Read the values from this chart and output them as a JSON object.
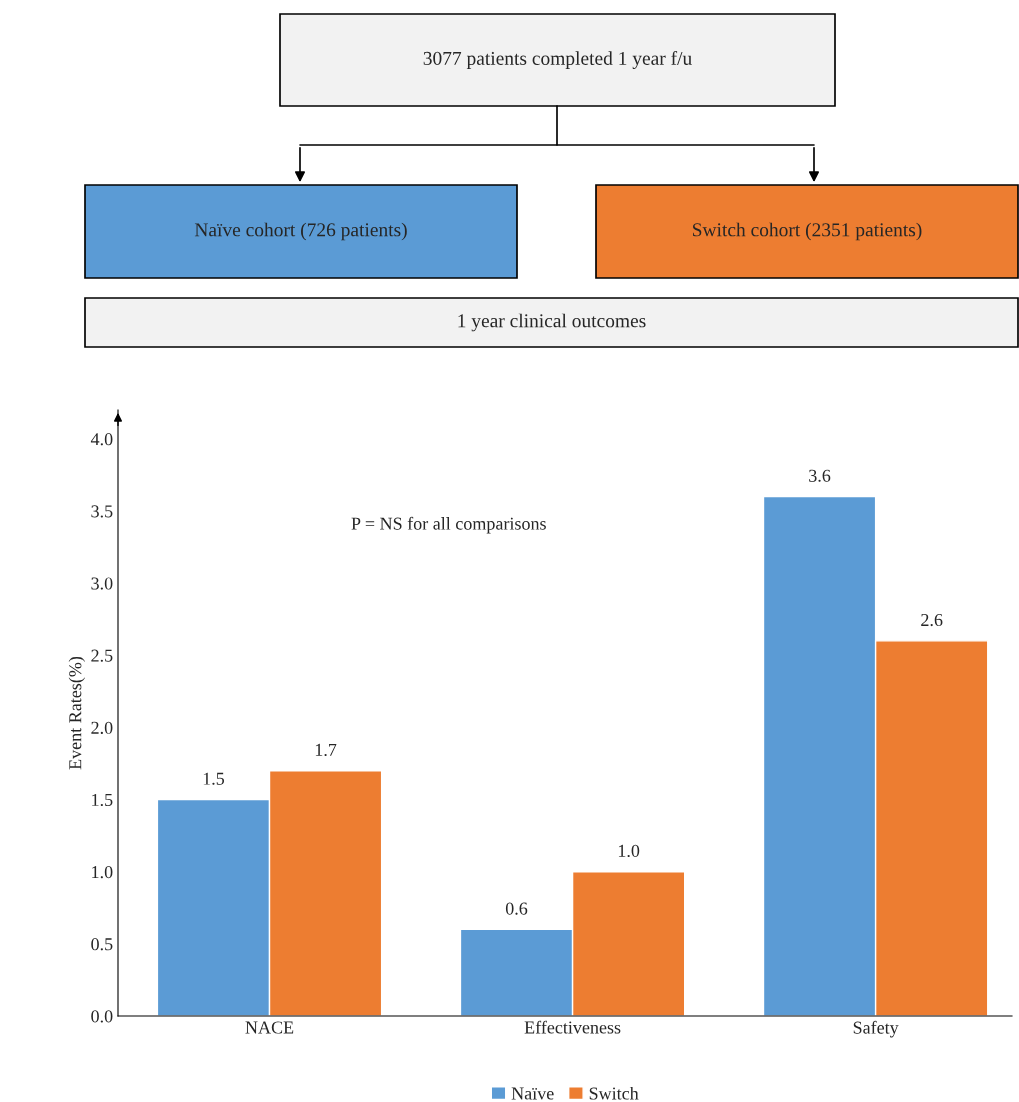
{
  "chart_data": {
    "type": "bar",
    "ylabel": "Event Rates(%)",
    "categories": [
      "NACE",
      "Effectiveness",
      "Safety"
    ],
    "series": [
      {
        "name": "Naïve",
        "color": "#5b9bd5",
        "values": [
          1.5,
          0.6,
          3.6
        ],
        "value_labels": [
          "1.5",
          "0.6",
          "3.6"
        ]
      },
      {
        "name": "Switch",
        "color": "#ed7d31",
        "values": [
          1.7,
          1.0,
          2.6
        ],
        "value_labels": [
          "1.7",
          "1.0",
          "2.6"
        ]
      }
    ],
    "ylim": [
      0,
      4.2
    ],
    "yticks": [
      {
        "value": 0,
        "label": "0.0"
      },
      {
        "value": 0.5,
        "label": "0.5"
      },
      {
        "value": 1,
        "label": "1.0"
      },
      {
        "value": 1.5,
        "label": "1.5"
      },
      {
        "value": 2,
        "label": "2.0"
      },
      {
        "value": 2.5,
        "label": "2.5"
      },
      {
        "value": 3,
        "label": "3.0"
      },
      {
        "value": 3.5,
        "label": "3.5"
      },
      {
        "value": 4,
        "label": "4.0"
      }
    ],
    "grid": false,
    "legend": "bottom",
    "annotations": [
      "3077 patients completed 1 year f/u",
      "Naïve cohort (726 patients)",
      "Switch cohort (2351 patients)",
      "1 year clinical outcomes",
      "P = NS for all comparisons"
    ]
  }
}
